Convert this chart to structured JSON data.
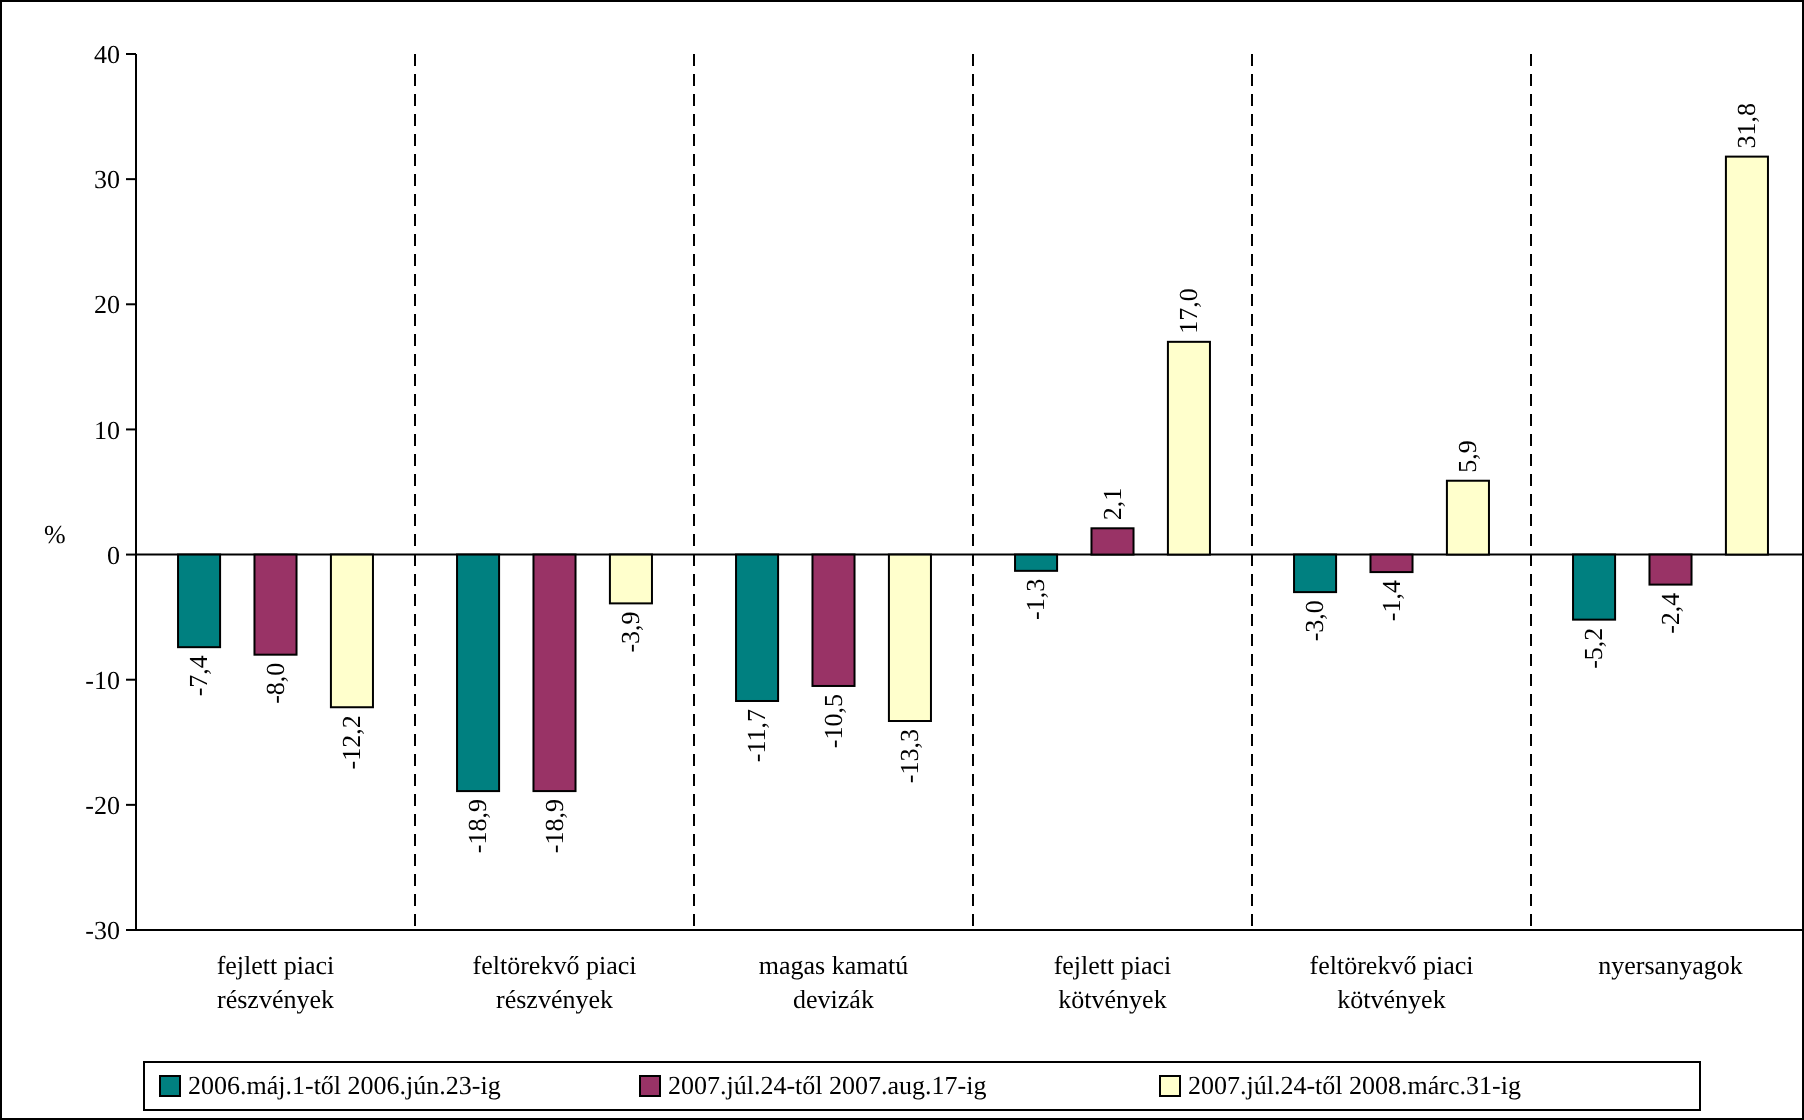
{
  "chart_data": {
    "type": "bar",
    "ylabel": "%",
    "categories": [
      "fejlett piaci részvények",
      "feltörekvő piaci részvények",
      "magas kamatú devizák",
      "fejlett piaci kötvények",
      "feltörekvő piaci kötvények",
      "nyersanyagok"
    ],
    "series": [
      {
        "name": "2006.máj.1-től 2006.jún.23-ig",
        "color": "#008080",
        "values": [
          -7.4,
          -18.9,
          -11.7,
          -1.3,
          -3.0,
          -5.2
        ],
        "value_labels": [
          "-7,4",
          "-18,9",
          "-11,7",
          "-1,3",
          "-3,0",
          "-5,2"
        ]
      },
      {
        "name": "2007.júl.24-től 2007.aug.17-ig",
        "color": "#993366",
        "values": [
          -8.0,
          -18.9,
          -10.5,
          2.1,
          -1.4,
          -2.4
        ],
        "value_labels": [
          "-8,0",
          "-18,9",
          "-10,5",
          "2,1",
          "-1,4",
          "-2,4"
        ]
      },
      {
        "name": "2007.júl.24-től 2008.márc.31-ig",
        "color": "#ffffcc",
        "values": [
          -12.2,
          -3.9,
          -13.3,
          17.0,
          5.9,
          31.8
        ],
        "value_labels": [
          "-12,2",
          "-3,9",
          "-13,3",
          "17,0",
          "5,9",
          "31,8"
        ]
      }
    ],
    "ylim": [
      -30,
      40
    ],
    "yticks": [
      {
        "value": -30,
        "label": "-30"
      },
      {
        "value": -20,
        "label": "-20"
      },
      {
        "value": -10,
        "label": "-10"
      },
      {
        "value": 0,
        "label": "0"
      },
      {
        "value": 10,
        "label": "10"
      },
      {
        "value": 20,
        "label": "20"
      },
      {
        "value": 30,
        "label": "30"
      },
      {
        "value": 40,
        "label": "40"
      }
    ],
    "grid": "x",
    "legend": "bottom"
  }
}
